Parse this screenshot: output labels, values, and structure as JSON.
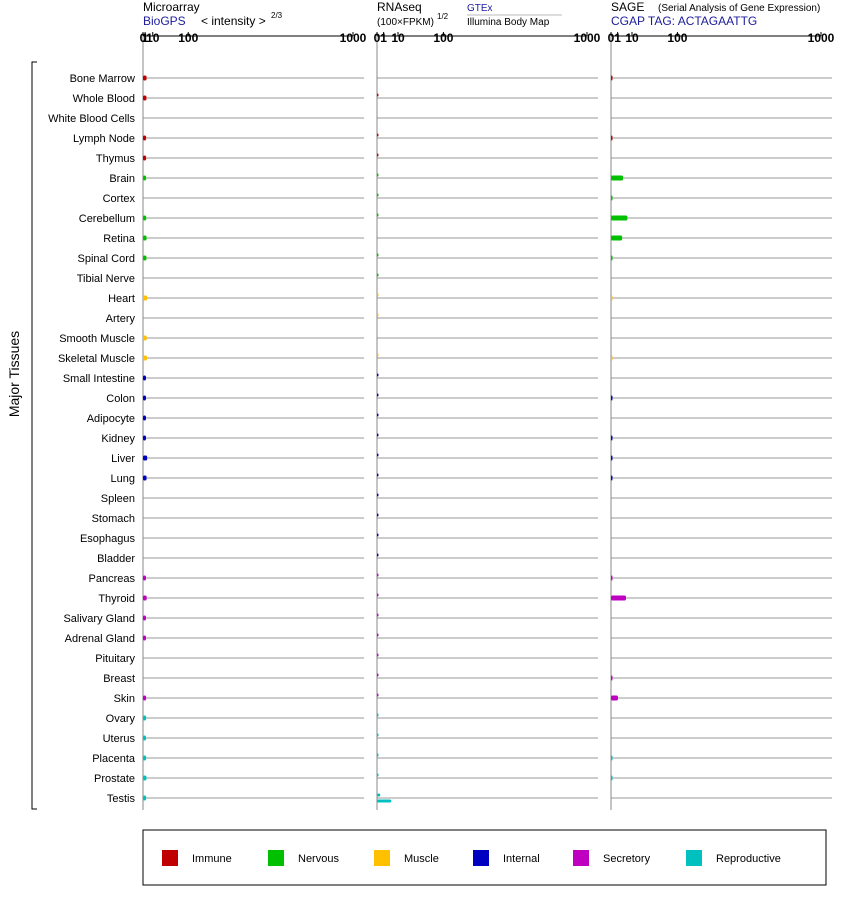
{
  "headers": {
    "microarray": {
      "title": "Microarray",
      "source": "BioGPS",
      "unit": "< intensity >",
      "unit_exp": "2/3"
    },
    "rnaseq": {
      "title": "RNAseq",
      "unit": "(100×FPKM)",
      "unit_exp": "1/2",
      "source1": "GTEx",
      "source2": "Illumina Body Map"
    },
    "sage": {
      "title": "SAGE",
      "subtitle": "(Serial Analysis of Gene Expression)",
      "tag": "CGAP TAG: ACTAGAATTG"
    }
  },
  "ylabel": "Major Tissues",
  "chart_data": {
    "type": "bar",
    "categories": [
      "Bone Marrow",
      "Whole Blood",
      "White Blood Cells",
      "Lymph Node",
      "Thymus",
      "Brain",
      "Cortex",
      "Cerebellum",
      "Retina",
      "Spinal Cord",
      "Tibial Nerve",
      "Heart",
      "Artery",
      "Smooth Muscle",
      "Skeletal Muscle",
      "Small Intestine",
      "Colon",
      "Adipocyte",
      "Kidney",
      "Liver",
      "Lung",
      "Spleen",
      "Stomach",
      "Esophagus",
      "Bladder",
      "Pancreas",
      "Thyroid",
      "Salivary Gland",
      "Adrenal Gland",
      "Pituitary",
      "Breast",
      "Skin",
      "Ovary",
      "Uterus",
      "Placenta",
      "Prostate",
      "Testis"
    ],
    "category_groups": [
      "Immune",
      "Immune",
      "Immune",
      "Immune",
      "Immune",
      "Nervous",
      "Nervous",
      "Nervous",
      "Nervous",
      "Nervous",
      "Nervous",
      "Muscle",
      "Muscle",
      "Muscle",
      "Muscle",
      "Internal",
      "Internal",
      "Internal",
      "Internal",
      "Internal",
      "Internal",
      "Internal",
      "Internal",
      "Internal",
      "Internal",
      "Secretory",
      "Secretory",
      "Secretory",
      "Secretory",
      "Secretory",
      "Secretory",
      "Secretory",
      "Reproductive",
      "Reproductive",
      "Reproductive",
      "Reproductive",
      "Reproductive"
    ],
    "x_ticks": [
      "0",
      "1",
      "10",
      "100",
      "1000"
    ],
    "x_tick_values": [
      0,
      1,
      10,
      100,
      1000
    ],
    "x_scale": "power",
    "xlim": [
      0,
      1000
    ],
    "panels": [
      {
        "name": "Microarray",
        "exponent": 0.6667,
        "values": [
          2.2,
          2.1,
          null,
          1.8,
          1.8,
          1.8,
          null,
          1.9,
          2.2,
          2.1,
          null,
          2.8,
          null,
          2.4,
          2.6,
          1.7,
          1.7,
          1.7,
          1.7,
          2.8,
          2.2,
          null,
          null,
          null,
          null,
          1.7,
          2.3,
          1.7,
          1.7,
          null,
          null,
          1.8,
          1.8,
          1.7,
          1.8,
          2.1,
          1.8
        ]
      },
      {
        "name": "RNAseq GTEx",
        "exponent": 0.5,
        "values": [
          null,
          0.02,
          null,
          0.02,
          0.02,
          0.01,
          0.01,
          0.01,
          null,
          0.01,
          0.01,
          0.02,
          0.01,
          null,
          0.01,
          0.02,
          0.02,
          0.02,
          0.02,
          0.02,
          0.02,
          0.02,
          0.02,
          0.02,
          0.02,
          0.02,
          0.02,
          0.02,
          0.02,
          0.02,
          0.02,
          0.02,
          0.02,
          0.02,
          0.02,
          0.02,
          0.25
        ]
      },
      {
        "name": "RNAseq Illumina Body Map",
        "exponent": 0.5,
        "values": [
          null,
          null,
          null,
          null,
          null,
          null,
          null,
          null,
          null,
          null,
          null,
          null,
          null,
          null,
          null,
          null,
          null,
          null,
          null,
          null,
          null,
          null,
          null,
          null,
          null,
          null,
          null,
          null,
          null,
          null,
          null,
          null,
          null,
          null,
          null,
          null,
          4.6
        ]
      },
      {
        "name": "SAGE",
        "exponent": 0.5,
        "values": [
          0.01,
          null,
          null,
          0.01,
          null,
          3.3,
          0.01,
          6.1,
          2.8,
          0.01,
          null,
          0.01,
          null,
          null,
          0.01,
          null,
          0.01,
          null,
          0.01,
          0.01,
          0.01,
          null,
          null,
          null,
          null,
          0.01,
          5.1,
          null,
          null,
          null,
          0.01,
          1.1,
          null,
          null,
          0.01,
          0.01,
          null
        ]
      }
    ]
  },
  "legend": [
    {
      "label": "Immune",
      "color": "#c00000"
    },
    {
      "label": "Nervous",
      "color": "#00c000"
    },
    {
      "label": "Muscle",
      "color": "#ffc000"
    },
    {
      "label": "Internal",
      "color": "#0000c0"
    },
    {
      "label": "Secretory",
      "color": "#c000c0"
    },
    {
      "label": "Reproductive",
      "color": "#00c0c0"
    }
  ]
}
